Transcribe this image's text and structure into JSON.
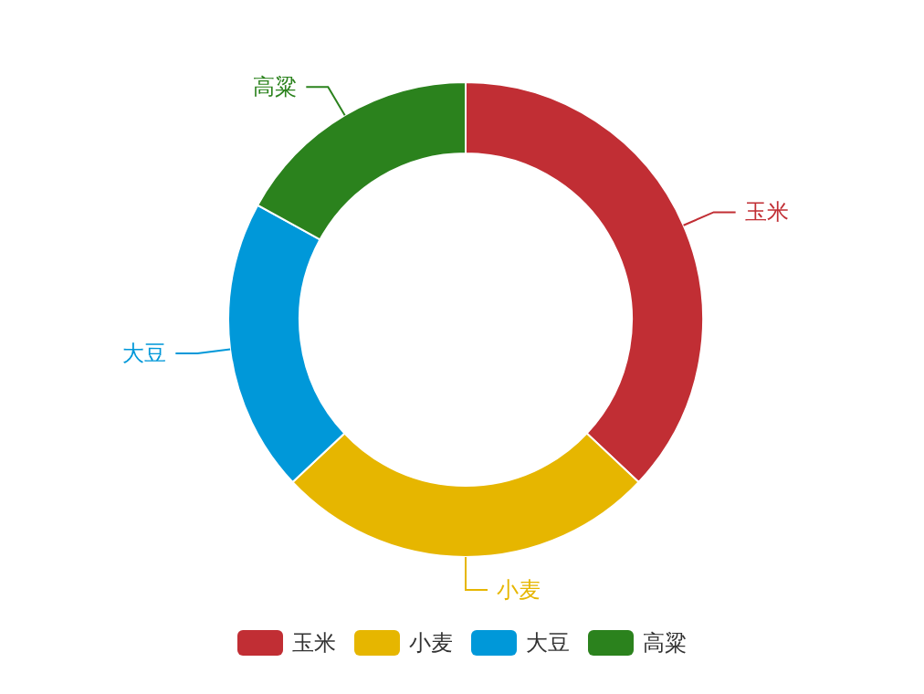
{
  "chart_data": {
    "type": "donut",
    "categories": [
      "玉米",
      "小麦",
      "大豆",
      "高粱"
    ],
    "values": [
      37,
      26,
      20,
      17
    ],
    "colors": [
      "#c12e34",
      "#e6b600",
      "#0098d9",
      "#2b821d"
    ],
    "legend": "bottom"
  }
}
